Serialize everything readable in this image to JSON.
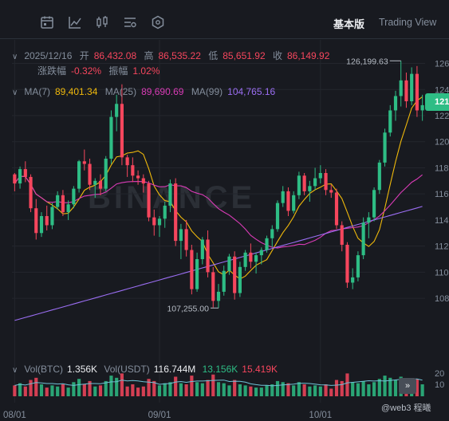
{
  "toolbar": {
    "icons": [
      "calendar-icon",
      "line-chart-icon",
      "candlestick-icon",
      "indicator-settings-icon",
      "hexagon-icon"
    ],
    "mode_active": "基本版",
    "mode_other": "Trading View"
  },
  "ohlc": {
    "date": "2025/12/16",
    "open_label": "开",
    "open": "86,432.08",
    "high_label": "高",
    "high": "86,535.22",
    "low_label": "低",
    "low": "85,651.92",
    "close_label": "收",
    "close": "86,149.92",
    "change_label": "涨跌幅",
    "change": "-0.32%",
    "amp_label": "振幅",
    "amp": "1.02%"
  },
  "ma": {
    "ma7_label": "MA(7)",
    "ma7": "89,401.34",
    "ma25_label": "MA(25)",
    "ma25": "89,690.69",
    "ma99_label": "MA(99)",
    "ma99": "104,765.16"
  },
  "volume": {
    "btc_label": "Vol(BTC)",
    "btc": "1.356K",
    "usdt_label": "Vol(USDT)",
    "usdt": "116.744M",
    "ma1": "13.156K",
    "ma2": "15.419K"
  },
  "colors": {
    "up": "#2ebd85",
    "down": "#f6465d",
    "ma7": "#f0b90b",
    "ma25": "#d93bb6",
    "ma99": "#9b6ef3"
  },
  "watermark": "BINANCE",
  "current_price_tag": "121",
  "bottom_note": "@web3 程曦",
  "vol_tag": "»",
  "chart_data": {
    "type": "candlestick",
    "x_ticks": [
      "08/01",
      "09/01",
      "10/01"
    ],
    "y_ticks": [
      "126",
      "124",
      "122",
      "120",
      "118",
      "116",
      "114",
      "112",
      "110",
      "108"
    ],
    "y_tick_values": [
      126000,
      124000,
      122000,
      120000,
      118000,
      116000,
      114000,
      112000,
      110000,
      108000
    ],
    "vol_ticks": [
      "20",
      "10"
    ],
    "ylim": [
      105500,
      127500
    ],
    "annotations": [
      {
        "text": "126,199.63",
        "x": 95,
        "y": 126199.63
      },
      {
        "text": "107,255.00",
        "x": 42,
        "y": 107255
      }
    ],
    "candles": [
      [
        117500,
        117600,
        116200,
        116800
      ],
      [
        116800,
        118100,
        116400,
        117900
      ],
      [
        117900,
        118500,
        116900,
        117300
      ],
      [
        117300,
        117500,
        114600,
        114900
      ],
      [
        114900,
        115600,
        112500,
        113000
      ],
      [
        113000,
        114600,
        112700,
        114300
      ],
      [
        114300,
        115100,
        113200,
        113600
      ],
      [
        113600,
        115300,
        113300,
        115000
      ],
      [
        115000,
        116200,
        114800,
        115900
      ],
      [
        115900,
        116300,
        114300,
        114600
      ],
      [
        114600,
        115500,
        114000,
        115200
      ],
      [
        115200,
        116600,
        114900,
        116400
      ],
      [
        116400,
        118600,
        116100,
        118500
      ],
      [
        118500,
        119400,
        117800,
        118300
      ],
      [
        118300,
        118700,
        116300,
        116700
      ],
      [
        116700,
        117200,
        115700,
        117000
      ],
      [
        117000,
        117500,
        115900,
        116400
      ],
      [
        116400,
        118900,
        116200,
        118700
      ],
      [
        118700,
        122400,
        118300,
        121900
      ],
      [
        121900,
        123600,
        120800,
        122900
      ],
      [
        122900,
        124400,
        118200,
        118800
      ],
      [
        118800,
        119000,
        117300,
        118200
      ],
      [
        118200,
        118800,
        116900,
        117400
      ],
      [
        117400,
        117800,
        116700,
        117200
      ],
      [
        117200,
        117500,
        116100,
        116800
      ],
      [
        116800,
        117000,
        113900,
        114200
      ],
      [
        114200,
        114800,
        112800,
        113600
      ],
      [
        113600,
        114300,
        112700,
        114100
      ],
      [
        114100,
        115400,
        113400,
        115100
      ],
      [
        115100,
        117100,
        114600,
        116800
      ],
      [
        116800,
        117200,
        112000,
        112400
      ],
      [
        112400,
        113700,
        111000,
        113300
      ],
      [
        113300,
        114000,
        111200,
        111700
      ],
      [
        111700,
        112100,
        108300,
        108700
      ],
      [
        108700,
        111500,
        108500,
        111000
      ],
      [
        111000,
        112700,
        110600,
        112500
      ],
      [
        112500,
        113200,
        109600,
        110000
      ],
      [
        110000,
        110400,
        107300,
        107800
      ],
      [
        107800,
        109100,
        107255,
        108500
      ],
      [
        108500,
        110500,
        108200,
        110100
      ],
      [
        110100,
        111400,
        109800,
        111200
      ],
      [
        111200,
        111600,
        107900,
        108400
      ],
      [
        108400,
        110800,
        108100,
        110400
      ],
      [
        110400,
        111700,
        110100,
        111500
      ],
      [
        111500,
        112200,
        110300,
        110800
      ],
      [
        110800,
        111500,
        109900,
        111300
      ],
      [
        111300,
        111900,
        110600,
        111700
      ],
      [
        111700,
        112800,
        111500,
        112600
      ],
      [
        112600,
        113600,
        111900,
        113300
      ],
      [
        113300,
        115500,
        113100,
        115300
      ],
      [
        115300,
        116600,
        115000,
        116200
      ],
      [
        116200,
        116500,
        114300,
        114700
      ],
      [
        114700,
        116200,
        114500,
        115900
      ],
      [
        115900,
        117700,
        115600,
        117400
      ],
      [
        117400,
        117600,
        115900,
        116200
      ],
      [
        116200,
        117000,
        115400,
        116600
      ],
      [
        116600,
        118000,
        116300,
        117200
      ],
      [
        117200,
        118200,
        116800,
        117600
      ],
      [
        117600,
        117900,
        115900,
        116300
      ],
      [
        116300,
        116700,
        115700,
        116100
      ],
      [
        116100,
        116400,
        113300,
        113600
      ],
      [
        113600,
        113900,
        111600,
        112100
      ],
      [
        112100,
        112300,
        108800,
        109200
      ],
      [
        109200,
        110300,
        108700,
        109600
      ],
      [
        109600,
        111600,
        109300,
        111300
      ],
      [
        111300,
        114200,
        111000,
        113800
      ],
      [
        113800,
        114600,
        112600,
        114200
      ],
      [
        114200,
        116500,
        113900,
        116300
      ],
      [
        116300,
        118600,
        116000,
        118400
      ],
      [
        118400,
        121000,
        118100,
        120700
      ],
      [
        120700,
        122800,
        120400,
        122400
      ],
      [
        122400,
        123900,
        121600,
        123500
      ],
      [
        123500,
        126199.63,
        122700,
        124700
      ],
      [
        124700,
        125300,
        122600,
        123100
      ],
      [
        123100,
        125700,
        122800,
        125200
      ],
      [
        125200,
        125800,
        121900,
        122400
      ],
      [
        122400,
        123600,
        121600,
        122800
      ]
    ],
    "volumes": [
      [
        10,
        "d"
      ],
      [
        12,
        "u"
      ],
      [
        9,
        "d"
      ],
      [
        15,
        "d"
      ],
      [
        17,
        "d"
      ],
      [
        11,
        "u"
      ],
      [
        8,
        "d"
      ],
      [
        10,
        "u"
      ],
      [
        9,
        "u"
      ],
      [
        11,
        "d"
      ],
      [
        8,
        "u"
      ],
      [
        13,
        "u"
      ],
      [
        16,
        "u"
      ],
      [
        11,
        "d"
      ],
      [
        14,
        "d"
      ],
      [
        9,
        "u"
      ],
      [
        10,
        "d"
      ],
      [
        14,
        "u"
      ],
      [
        19,
        "u"
      ],
      [
        17,
        "u"
      ],
      [
        21,
        "d"
      ],
      [
        9,
        "d"
      ],
      [
        11,
        "d"
      ],
      [
        8,
        "d"
      ],
      [
        9,
        "d"
      ],
      [
        16,
        "d"
      ],
      [
        14,
        "d"
      ],
      [
        10,
        "u"
      ],
      [
        12,
        "u"
      ],
      [
        13,
        "u"
      ],
      [
        18,
        "d"
      ],
      [
        12,
        "u"
      ],
      [
        11,
        "d"
      ],
      [
        19,
        "d"
      ],
      [
        13,
        "u"
      ],
      [
        12,
        "u"
      ],
      [
        15,
        "d"
      ],
      [
        20,
        "d"
      ],
      [
        13,
        "u"
      ],
      [
        12,
        "u"
      ],
      [
        10,
        "u"
      ],
      [
        15,
        "d"
      ],
      [
        11,
        "u"
      ],
      [
        10,
        "u"
      ],
      [
        9,
        "d"
      ],
      [
        8,
        "u"
      ],
      [
        8,
        "u"
      ],
      [
        10,
        "u"
      ],
      [
        11,
        "u"
      ],
      [
        14,
        "u"
      ],
      [
        13,
        "u"
      ],
      [
        12,
        "d"
      ],
      [
        10,
        "u"
      ],
      [
        13,
        "u"
      ],
      [
        11,
        "d"
      ],
      [
        9,
        "u"
      ],
      [
        10,
        "u"
      ],
      [
        9,
        "u"
      ],
      [
        11,
        "d"
      ],
      [
        7,
        "d"
      ],
      [
        15,
        "d"
      ],
      [
        14,
        "d"
      ],
      [
        21,
        "d"
      ],
      [
        13,
        "u"
      ],
      [
        12,
        "u"
      ],
      [
        14,
        "u"
      ],
      [
        11,
        "u"
      ],
      [
        13,
        "u"
      ],
      [
        16,
        "u"
      ],
      [
        19,
        "u"
      ],
      [
        17,
        "u"
      ],
      [
        15,
        "u"
      ],
      [
        18,
        "u"
      ],
      [
        14,
        "d"
      ],
      [
        13,
        "u"
      ],
      [
        16,
        "d"
      ],
      [
        11,
        "u"
      ]
    ]
  }
}
